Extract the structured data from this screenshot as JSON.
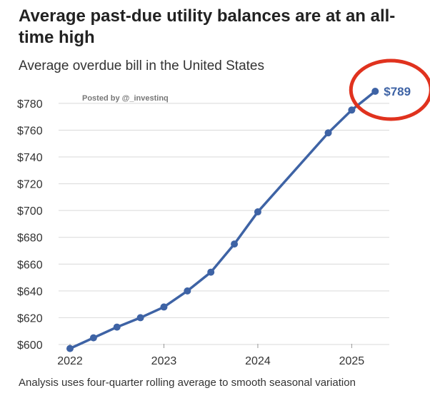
{
  "title": "Average past-due utility balances are at an all-time high",
  "subtitle": "Average overdue bill in the United States",
  "footnote": "Analysis uses four-quarter rolling average to smooth seasonal variation",
  "watermark": "Posted by @_investinq",
  "chart_data": {
    "type": "line",
    "title": "Average past-due utility balances are at an all-time high",
    "subtitle": "Average overdue bill in the United States",
    "xlabel": "",
    "ylabel": "",
    "ylim": [
      600,
      789
    ],
    "xlim": [
      2022,
      2025.4
    ],
    "grid": true,
    "x_ticks": [
      2022,
      2023,
      2024,
      2025
    ],
    "x_tick_labels": [
      "2022",
      "2023",
      "2024",
      "2025"
    ],
    "y_ticks": [
      600,
      620,
      640,
      660,
      680,
      700,
      720,
      740,
      760,
      780
    ],
    "y_tick_labels": [
      "$600",
      "$620",
      "$640",
      "$660",
      "$680",
      "$700",
      "$720",
      "$740",
      "$760",
      "$780"
    ],
    "series": [
      {
        "name": "Average overdue bill",
        "color": "#3e63a5",
        "x": [
          2022.0,
          2022.25,
          2022.5,
          2022.75,
          2023.0,
          2023.25,
          2023.5,
          2023.75,
          2024.0,
          2024.75,
          2025.0,
          2025.25
        ],
        "values": [
          597,
          605,
          613,
          620,
          628,
          640,
          654,
          675,
          699,
          758,
          775,
          789
        ]
      }
    ],
    "annotation": {
      "text": "$789",
      "highlight_color": "#e0321e"
    }
  }
}
